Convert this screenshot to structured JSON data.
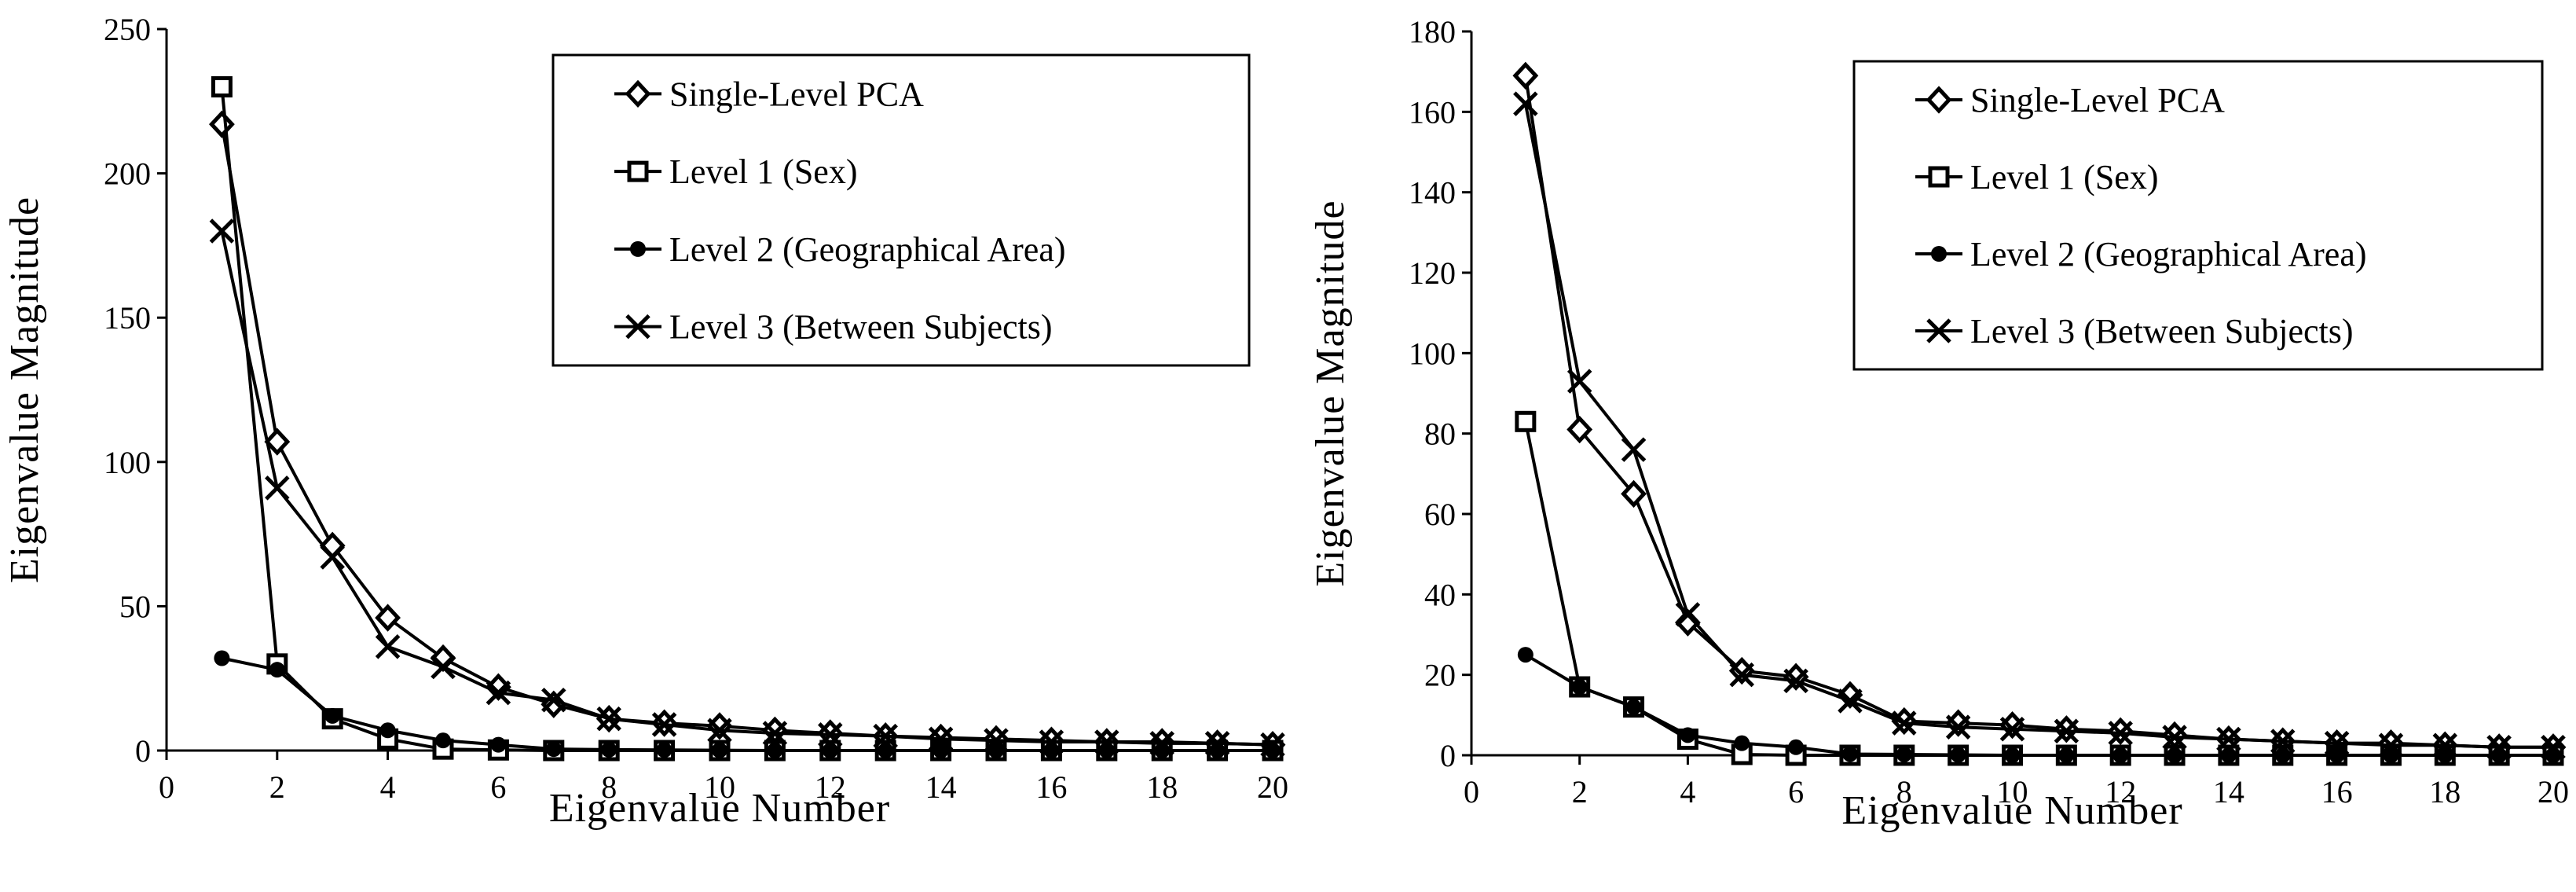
{
  "chart_data": [
    {
      "type": "line",
      "xlabel": "Eigenvalue Number",
      "ylabel": "Eigenvalue Magnitude",
      "xlim": [
        0,
        20
      ],
      "ylim": [
        0,
        250
      ],
      "xticks": [
        0,
        2,
        4,
        6,
        8,
        10,
        12,
        14,
        16,
        18,
        20
      ],
      "xtick_labels": [
        "0",
        "2",
        "4",
        "6",
        "8",
        "10",
        "12",
        "14",
        "16",
        "18",
        "20"
      ],
      "yticks": [
        0,
        50,
        100,
        150,
        200,
        250
      ],
      "ytick_labels": [
        "0",
        "50",
        "100",
        "150",
        "200",
        "250"
      ],
      "grid": false,
      "legend_position": "top-right",
      "x": [
        1,
        2,
        3,
        4,
        5,
        6,
        7,
        8,
        9,
        10,
        11,
        12,
        13,
        14,
        15,
        16,
        17,
        18,
        19,
        20
      ],
      "series": [
        {
          "name": "Single-Level PCA",
          "marker": "diamond",
          "values": [
            217,
            107,
            71,
            46,
            32,
            22,
            16,
            11,
            9.5,
            8.5,
            7,
            6,
            5,
            4.5,
            4,
            3.5,
            3,
            3,
            2.5,
            2
          ]
        },
        {
          "name": "Level 1 (Sex)",
          "marker": "square",
          "values": [
            230,
            30,
            11,
            4,
            0.5,
            0.2,
            0,
            0,
            0,
            0,
            0,
            0,
            0,
            0,
            0,
            0,
            0,
            0,
            0,
            0
          ]
        },
        {
          "name": "Level 2 (Geographical Area)",
          "marker": "circle",
          "values": [
            32,
            28,
            12,
            7,
            3.5,
            2,
            0.5,
            0.3,
            0.2,
            0.1,
            0,
            0,
            0,
            0,
            0,
            0,
            0,
            0,
            0,
            0
          ]
        },
        {
          "name": "Level 3 (Between Subjects)",
          "marker": "x",
          "values": [
            180,
            91,
            67,
            36,
            29,
            20,
            17.5,
            11,
            9,
            7,
            6,
            5.5,
            5,
            4,
            3.5,
            3,
            3,
            2.5,
            2.5,
            2
          ]
        }
      ]
    },
    {
      "type": "line",
      "xlabel": "Eigenvalue Number",
      "ylabel": "Eigenvalue Magnitude",
      "xlim": [
        0,
        20
      ],
      "ylim": [
        0,
        180
      ],
      "xticks": [
        0,
        2,
        4,
        6,
        8,
        10,
        12,
        14,
        16,
        18,
        20
      ],
      "xtick_labels": [
        "0",
        "2",
        "4",
        "6",
        "8",
        "10",
        "12",
        "14",
        "16",
        "18",
        "20"
      ],
      "yticks": [
        0,
        20,
        40,
        60,
        80,
        100,
        120,
        140,
        160,
        180
      ],
      "ytick_labels": [
        "0",
        "20",
        "40",
        "60",
        "80",
        "100",
        "120",
        "140",
        "160",
        "180"
      ],
      "grid": false,
      "legend_position": "top-right",
      "x": [
        1,
        2,
        3,
        4,
        5,
        6,
        7,
        8,
        9,
        10,
        11,
        12,
        13,
        14,
        15,
        16,
        17,
        18,
        19,
        20
      ],
      "series": [
        {
          "name": "Single-Level PCA",
          "marker": "diamond",
          "values": [
            169,
            81,
            65,
            33,
            21,
            19.5,
            15,
            8.5,
            8,
            7.5,
            6.5,
            6,
            5,
            4,
            3.5,
            3,
            3,
            2.5,
            2,
            2
          ]
        },
        {
          "name": "Level 1 (Sex)",
          "marker": "square",
          "values": [
            83,
            17,
            12,
            4,
            0.2,
            0,
            0,
            0,
            0,
            0,
            0,
            0,
            0,
            0,
            0,
            0,
            0,
            0,
            0,
            0
          ]
        },
        {
          "name": "Level 2 (Geographical Area)",
          "marker": "circle",
          "values": [
            25,
            17,
            12,
            5,
            3,
            2,
            0.3,
            0.2,
            0.1,
            0,
            0,
            0,
            0,
            0,
            0,
            0,
            0,
            0,
            0,
            0
          ]
        },
        {
          "name": "Level 3 (Between Subjects)",
          "marker": "x",
          "values": [
            162,
            93,
            76,
            35,
            20,
            18.5,
            13.5,
            8,
            7,
            6.5,
            6,
            5.5,
            4.5,
            4,
            3.5,
            3,
            2.5,
            2.5,
            2,
            2
          ]
        }
      ]
    }
  ]
}
